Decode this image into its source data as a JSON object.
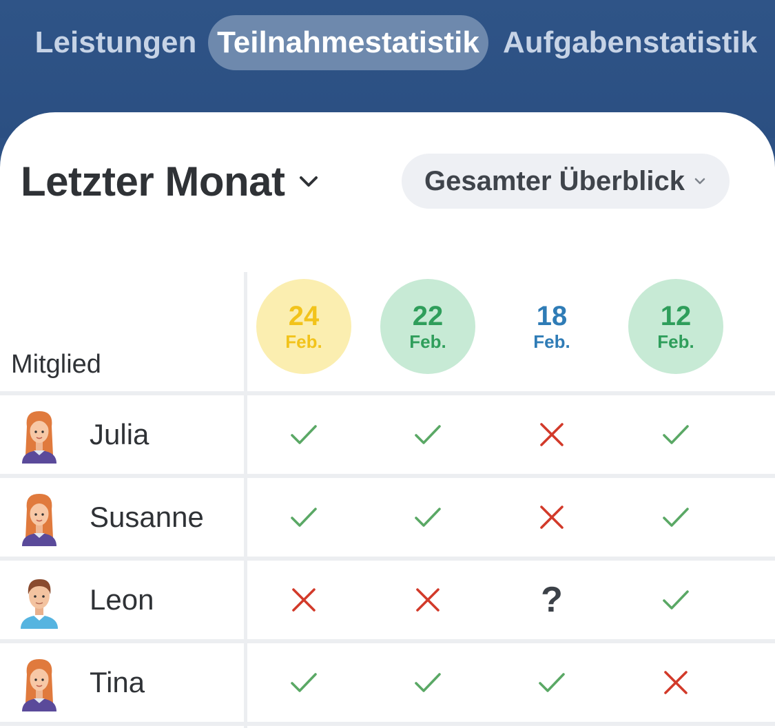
{
  "tabs": [
    {
      "label": "Leistungen"
    },
    {
      "label": "Teilnahmestatistik"
    },
    {
      "label": "Aufgabenstatistik"
    }
  ],
  "active_tab": "Teilnahmestatistik",
  "filters": {
    "period": "Letzter Monat",
    "overview": "Gesamter Überblick"
  },
  "table": {
    "member_header": "Mitglied",
    "dates": [
      {
        "day": "24",
        "month": "Feb.",
        "color": "#f2c31b",
        "bg": "#fbeeb0"
      },
      {
        "day": "22",
        "month": "Feb.",
        "color": "#2f9e5b",
        "bg": "#c7ead5"
      },
      {
        "day": "18",
        "month": "Feb.",
        "color": "#2f7cb6",
        "bg": "#ffffff"
      },
      {
        "day": "12",
        "month": "Feb.",
        "color": "#2f9e5b",
        "bg": "#c7ead5"
      }
    ],
    "rows": [
      {
        "name": "Julia",
        "avatar": "female-avatar-icon",
        "marks": [
          "check",
          "check",
          "cross",
          "check"
        ]
      },
      {
        "name": "Susanne",
        "avatar": "female-avatar-icon",
        "marks": [
          "check",
          "check",
          "cross",
          "check"
        ]
      },
      {
        "name": "Leon",
        "avatar": "male-avatar-icon",
        "marks": [
          "cross",
          "cross",
          "?",
          "check"
        ]
      },
      {
        "name": "Tina",
        "avatar": "female-avatar-icon",
        "marks": [
          "check",
          "check",
          "check",
          "cross"
        ]
      }
    ]
  },
  "colors": {
    "header_bg": "#2d5184",
    "tab_active_bg": "#6e89ad",
    "check": "#5aa865",
    "cross": "#d23a2a",
    "unknown": "#3c4148"
  }
}
